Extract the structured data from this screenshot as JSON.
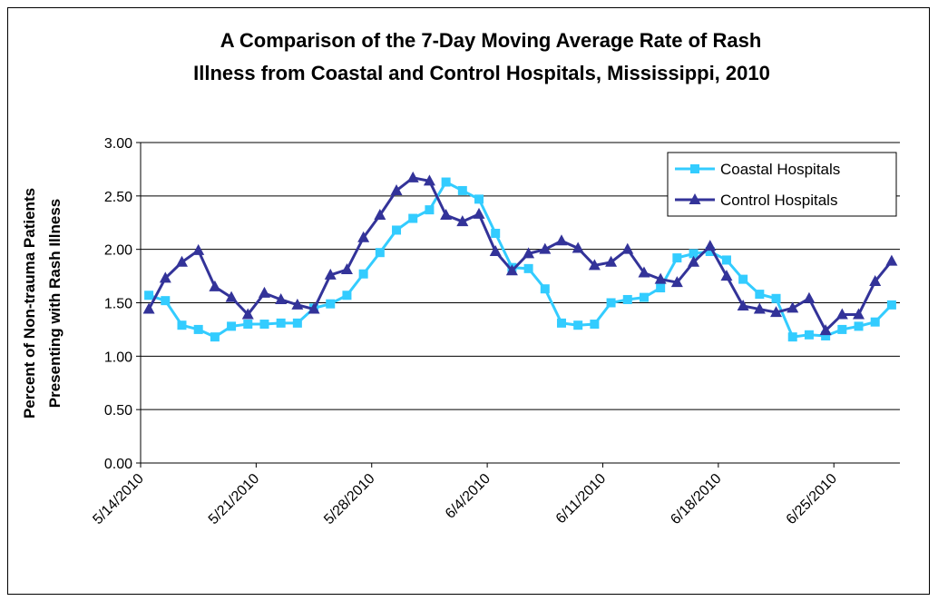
{
  "chart_data": {
    "type": "line",
    "title": [
      "A Comparison of the 7-Day Moving Average Rate of Rash",
      "Illness from Coastal and Control Hospitals, Mississippi, 2010"
    ],
    "ylabel": [
      "Percent of Non-trauma Patients",
      "Presenting with Rash Illness"
    ],
    "categories": [
      "5/14/2010",
      null,
      null,
      null,
      null,
      null,
      null,
      "5/21/2010",
      null,
      null,
      null,
      null,
      null,
      null,
      "5/28/2010",
      null,
      null,
      null,
      null,
      null,
      null,
      "6/4/2010",
      null,
      null,
      null,
      null,
      null,
      null,
      "6/11/2010",
      null,
      null,
      null,
      null,
      null,
      null,
      "6/18/2010",
      null,
      null,
      null,
      null,
      null,
      null,
      "6/25/2010",
      null,
      null,
      null
    ],
    "series": [
      {
        "name": "Coastal Hospitals",
        "color": "#33ccff",
        "marker": "square",
        "values": [
          1.57,
          1.52,
          1.29,
          1.25,
          1.18,
          1.28,
          1.3,
          1.3,
          1.31,
          1.31,
          1.45,
          1.49,
          1.57,
          1.77,
          1.97,
          2.18,
          2.29,
          2.37,
          2.63,
          2.55,
          2.47,
          2.15,
          1.83,
          1.82,
          1.63,
          1.31,
          1.29,
          1.3,
          1.5,
          1.53,
          1.55,
          1.64,
          1.92,
          1.96,
          1.98,
          1.9,
          1.72,
          1.58,
          1.54,
          1.18,
          1.2,
          1.19,
          1.25,
          1.28,
          1.32,
          1.48
        ]
      },
      {
        "name": "Control Hospitals",
        "color": "#333399",
        "marker": "triangle",
        "values": [
          1.44,
          1.73,
          1.88,
          1.99,
          1.65,
          1.55,
          1.39,
          1.59,
          1.53,
          1.48,
          1.44,
          1.76,
          1.81,
          2.11,
          2.32,
          2.55,
          2.67,
          2.64,
          2.32,
          2.26,
          2.33,
          1.98,
          1.8,
          1.96,
          2.0,
          2.08,
          2.01,
          1.85,
          1.88,
          2.0,
          1.78,
          1.72,
          1.69,
          1.88,
          2.03,
          1.75,
          1.47,
          1.44,
          1.41,
          1.45,
          1.54,
          1.24,
          1.39,
          1.39,
          1.7,
          1.89
        ]
      }
    ],
    "ylim": [
      0,
      3
    ],
    "yticks": [
      {
        "value": 0,
        "label": "0.00"
      },
      {
        "value": 0.5,
        "label": "0.50"
      },
      {
        "value": 1,
        "label": "1.00"
      },
      {
        "value": 1.5,
        "label": "1.50"
      },
      {
        "value": 2,
        "label": "2.00"
      },
      {
        "value": 2.5,
        "label": "2.50"
      },
      {
        "value": 3,
        "label": "3.00"
      }
    ],
    "grid": true,
    "legend": "upper right"
  }
}
